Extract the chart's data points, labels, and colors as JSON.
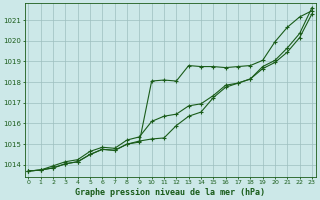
{
  "title": "Graphe pression niveau de la mer (hPa)",
  "background_color": "#cce8e8",
  "grid_color": "#9dbfbf",
  "line_color": "#1a5c1a",
  "x_ticks": [
    0,
    1,
    2,
    3,
    4,
    5,
    6,
    7,
    8,
    9,
    10,
    11,
    12,
    13,
    14,
    15,
    16,
    17,
    18,
    19,
    20,
    21,
    22,
    23
  ],
  "y_ticks": [
    1014,
    1015,
    1016,
    1017,
    1018,
    1019,
    1020,
    1021
  ],
  "ylim": [
    1013.4,
    1021.8
  ],
  "xlim": [
    -0.3,
    23.3
  ],
  "series1": [
    1013.7,
    1013.75,
    1013.85,
    1014.05,
    1014.15,
    1014.5,
    1014.75,
    1014.7,
    1015.0,
    1015.1,
    1018.05,
    1018.1,
    1018.05,
    1018.8,
    1018.75,
    1018.75,
    1018.7,
    1018.75,
    1018.8,
    1019.05,
    1019.95,
    1020.65,
    1021.15,
    1021.45
  ],
  "series2": [
    1013.7,
    1013.75,
    1013.85,
    1014.05,
    1014.15,
    1014.5,
    1014.75,
    1014.7,
    1015.0,
    1015.15,
    1015.25,
    1015.3,
    1015.9,
    1016.35,
    1016.55,
    1017.25,
    1017.75,
    1017.95,
    1018.15,
    1018.65,
    1018.95,
    1019.45,
    1020.15,
    1021.3
  ],
  "series3": [
    1013.7,
    1013.75,
    1013.95,
    1014.15,
    1014.25,
    1014.65,
    1014.85,
    1014.8,
    1015.2,
    1015.35,
    1016.1,
    1016.35,
    1016.45,
    1016.85,
    1016.95,
    1017.35,
    1017.85,
    1017.95,
    1018.15,
    1018.75,
    1019.05,
    1019.65,
    1020.35,
    1021.6
  ]
}
